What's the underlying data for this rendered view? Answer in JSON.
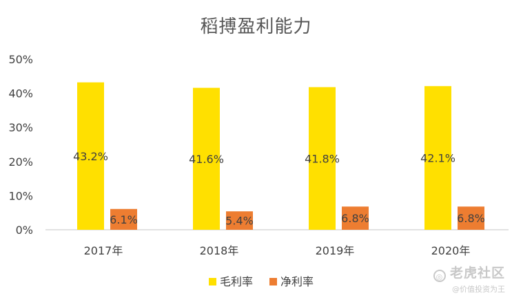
{
  "chart_data": {
    "type": "bar",
    "title": "稻搏盈利能力",
    "categories": [
      "2017年",
      "2018年",
      "2019年",
      "2020年"
    ],
    "series": [
      {
        "name": "毛利率",
        "values": [
          43.2,
          41.6,
          41.8,
          42.1
        ],
        "labels": [
          "43.2%",
          "41.6%",
          "41.8%",
          "42.1%"
        ],
        "color": "#FFE000"
      },
      {
        "name": "净利率",
        "values": [
          6.1,
          5.4,
          6.8,
          6.8
        ],
        "labels": [
          "6.1%",
          "5.4%",
          "6.8%",
          "6.8%"
        ],
        "color": "#ED7D31"
      }
    ],
    "ylim": [
      0,
      50
    ],
    "yticks": [
      "0%",
      "10%",
      "20%",
      "30%",
      "40%",
      "50%"
    ],
    "xlabel": "",
    "ylabel": "",
    "grid": false,
    "legend": "bottom"
  },
  "watermark": {
    "logo": "老虎社区",
    "sub": "@价值投资为王"
  },
  "colors": {
    "text": "#404040",
    "axis": "#d0d0d0",
    "title": "#555555"
  }
}
